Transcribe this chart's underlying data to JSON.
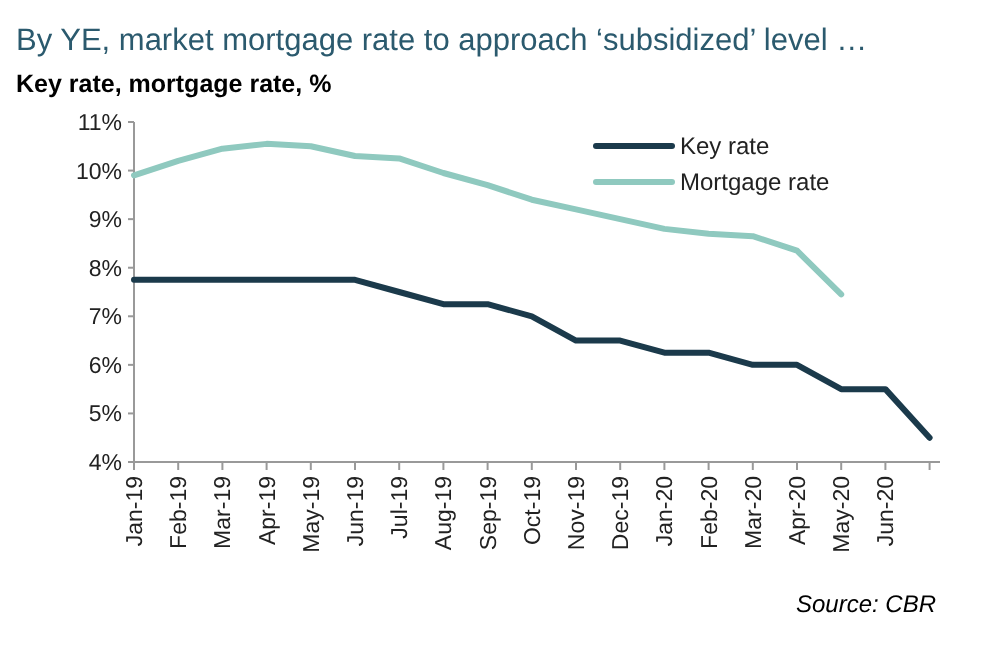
{
  "chart_data": {
    "type": "line",
    "title": "By YE, market mortgage rate to approach ‘subsidized’ level …",
    "ylabel": "Key rate, mortgage rate, %",
    "categories": [
      "Jan-19",
      "Feb-19",
      "Mar-19",
      "Apr-19",
      "May-19",
      "Jun-19",
      "Jul-19",
      "Aug-19",
      "Sep-19",
      "Oct-19",
      "Nov-19",
      "Dec-19",
      "Jan-20",
      "Feb-20",
      "Mar-20",
      "Apr-20",
      "May-20",
      "Jun-20",
      null
    ],
    "series": [
      {
        "name": "Key rate",
        "color": "#1b3a4b",
        "values": [
          7.75,
          7.75,
          7.75,
          7.75,
          7.75,
          7.75,
          7.5,
          7.25,
          7.25,
          7.0,
          6.5,
          6.5,
          6.25,
          6.25,
          6.0,
          6.0,
          5.5,
          5.5,
          4.5
        ]
      },
      {
        "name": "Mortgage rate",
        "color": "#8fc9bf",
        "values": [
          9.9,
          10.2,
          10.45,
          10.55,
          10.5,
          10.3,
          10.25,
          9.95,
          9.7,
          9.4,
          9.2,
          9.0,
          8.8,
          8.7,
          8.65,
          8.35,
          7.45,
          null,
          null
        ]
      }
    ],
    "ylim": [
      4,
      11
    ],
    "yticks": [
      {
        "value": 4,
        "label": "4%"
      },
      {
        "value": 5,
        "label": "5%"
      },
      {
        "value": 6,
        "label": "6%"
      },
      {
        "value": 7,
        "label": "7%"
      },
      {
        "value": 8,
        "label": "8%"
      },
      {
        "value": 9,
        "label": "9%"
      },
      {
        "value": 10,
        "label": "10%"
      },
      {
        "value": 11,
        "label": "11%"
      }
    ],
    "legend": "top right",
    "grid": false,
    "marker": "none",
    "line_style": "solid",
    "annotations": [
      "Source: CBR"
    ]
  }
}
